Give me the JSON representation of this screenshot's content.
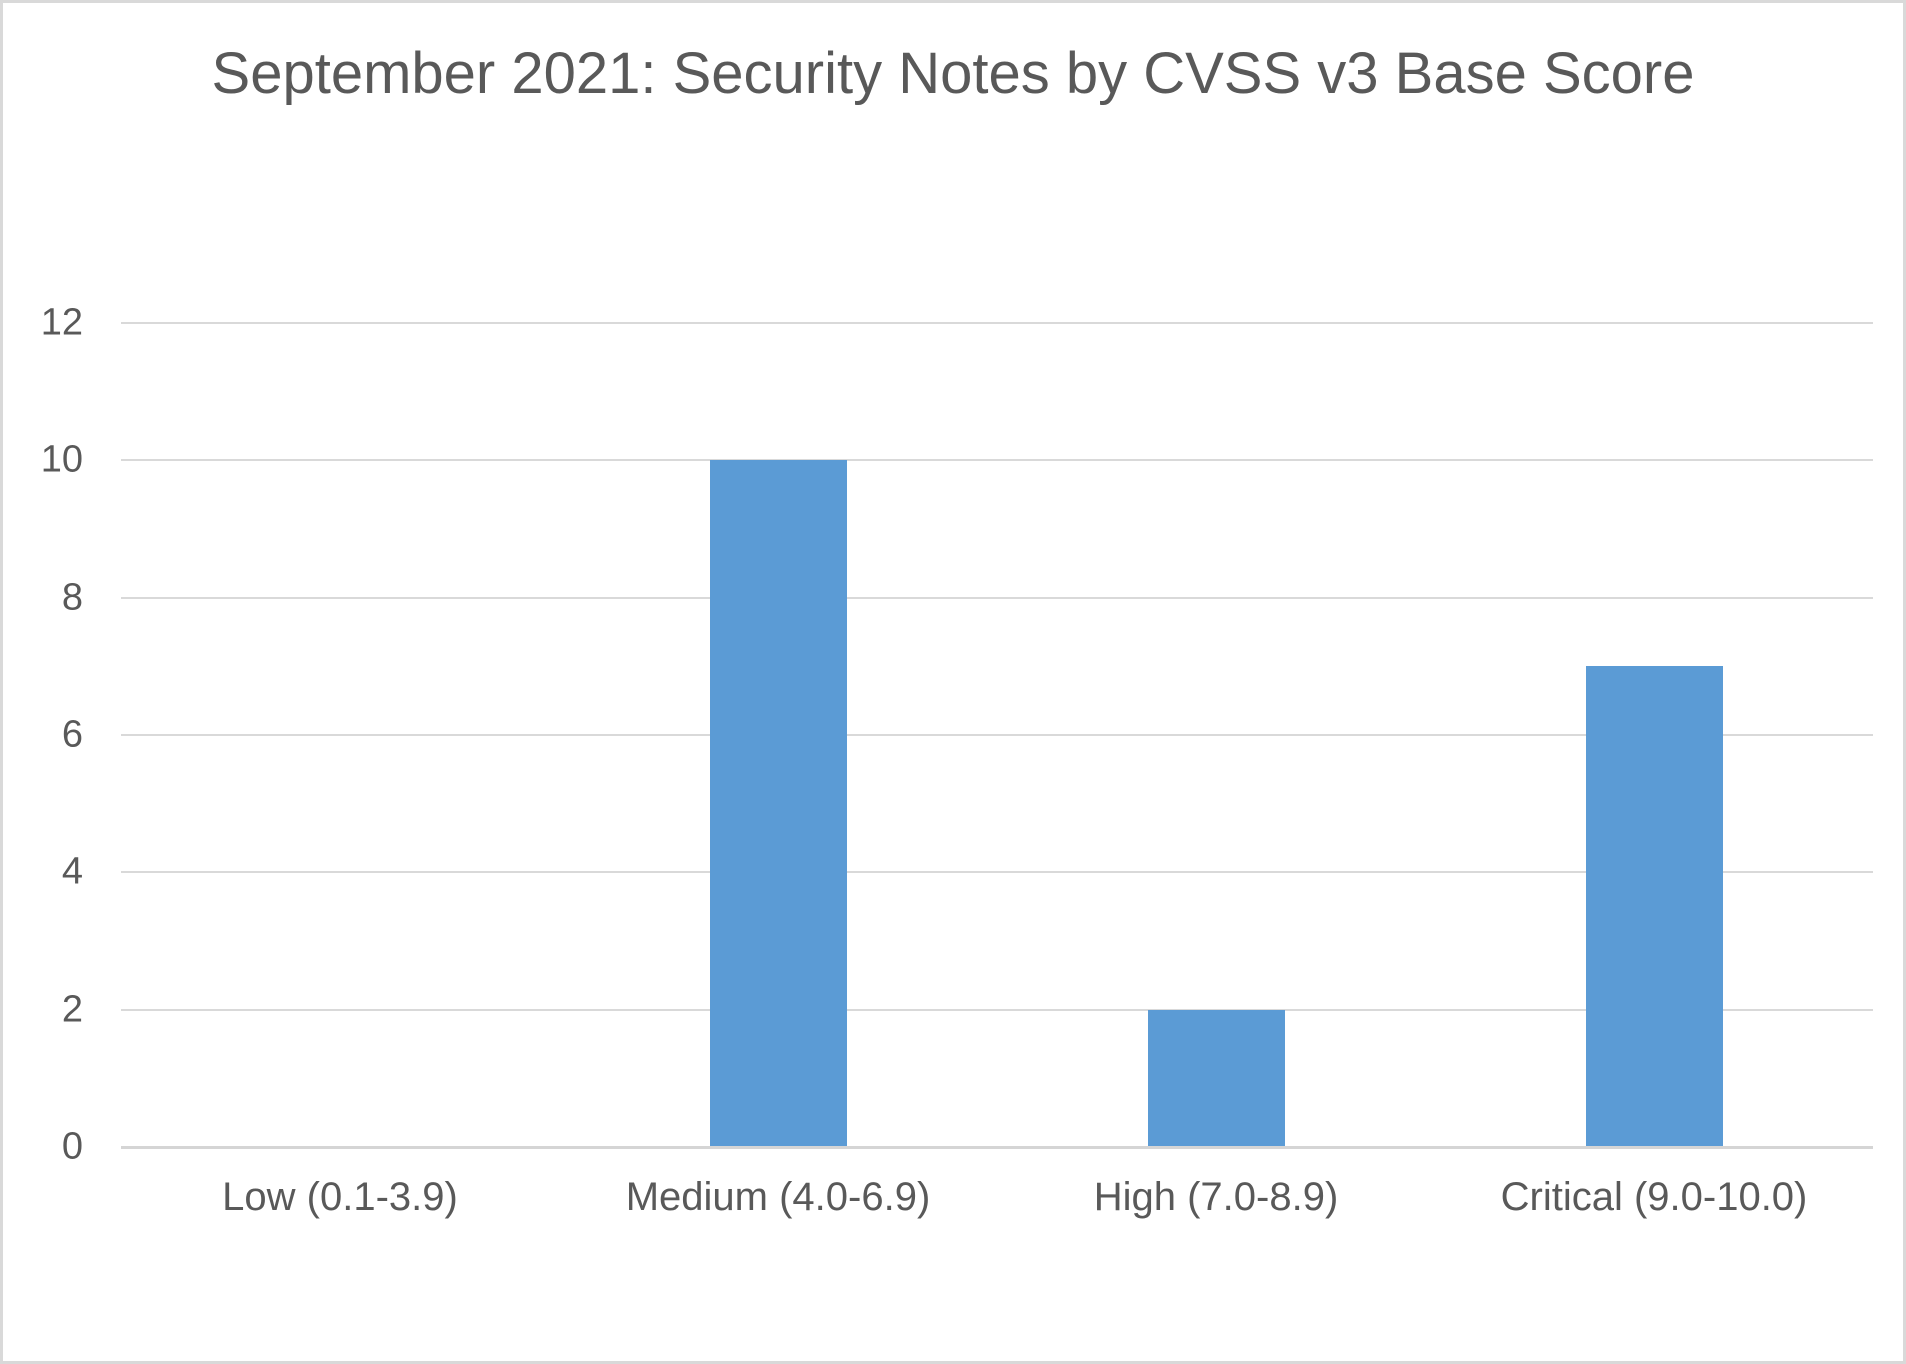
{
  "chart_data": {
    "type": "bar",
    "title": "September 2021: Security Notes by CVSS v3 Base Score",
    "categories": [
      "Low (0.1-3.9)",
      "Medium (4.0-6.9)",
      "High (7.0-8.9)",
      "Critical (9.0-10.0)"
    ],
    "values": [
      0,
      10,
      2,
      7
    ],
    "xlabel": "",
    "ylabel": "",
    "ylim": [
      0,
      12
    ],
    "yticks": [
      0,
      2,
      4,
      6,
      8,
      10,
      12
    ],
    "grid": true,
    "legend": false,
    "colors": {
      "bar": "#5B9BD5",
      "text": "#595959",
      "gridline": "#D9D9D9",
      "axis": "#D5D5D5",
      "frame_border": "#D9D9D9",
      "background": "#FFFFFF"
    }
  }
}
